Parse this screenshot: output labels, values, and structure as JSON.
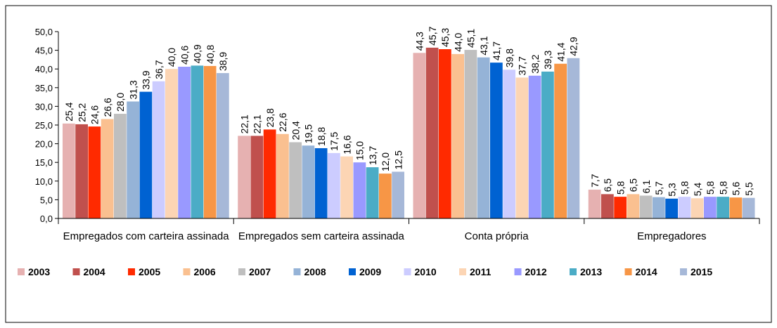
{
  "chart_data": {
    "type": "bar",
    "categories": [
      "Empregados com carteira assinada",
      "Empregados sem carteira assinada",
      "Conta própria",
      "Empregadores"
    ],
    "ylim": [
      0,
      50
    ],
    "yticks": [
      {
        "value": 0,
        "label": "0,0"
      },
      {
        "value": 5,
        "label": "5,0"
      },
      {
        "value": 10,
        "label": "10,0"
      },
      {
        "value": 15,
        "label": "15,0"
      },
      {
        "value": 20,
        "label": "20,0"
      },
      {
        "value": 25,
        "label": "25,0"
      },
      {
        "value": 30,
        "label": "30,0"
      },
      {
        "value": 35,
        "label": "35,0"
      },
      {
        "value": 40,
        "label": "40,0"
      },
      {
        "value": 45,
        "label": "45,0"
      },
      {
        "value": 50,
        "label": "50,0"
      }
    ],
    "series": [
      {
        "name": "2003",
        "color": "#e6b1b1",
        "values": [
          25.4,
          22.1,
          44.3,
          7.7
        ],
        "value_labels": [
          "25,4",
          "22,1",
          "44,3",
          "7,7"
        ]
      },
      {
        "name": "2004",
        "color": "#c0504d",
        "values": [
          25.2,
          22.1,
          45.7,
          6.5
        ],
        "value_labels": [
          "25,2",
          "22,1",
          "45,7",
          "6,5"
        ]
      },
      {
        "name": "2005",
        "color": "#ff2a00",
        "values": [
          24.6,
          23.8,
          45.3,
          5.8
        ],
        "value_labels": [
          "24,6",
          "23,8",
          "45,3",
          "5,8"
        ]
      },
      {
        "name": "2006",
        "color": "#fac090",
        "values": [
          26.6,
          22.6,
          44.0,
          6.5
        ],
        "value_labels": [
          "26,6",
          "22,6",
          "44,0",
          "6,5"
        ]
      },
      {
        "name": "2007",
        "color": "#bfbfbf",
        "values": [
          28.0,
          20.4,
          45.1,
          6.1
        ],
        "value_labels": [
          "28,0",
          "20,4",
          "45,1",
          "6,1"
        ]
      },
      {
        "name": "2008",
        "color": "#95b3d7",
        "values": [
          31.3,
          19.5,
          43.1,
          5.7
        ],
        "value_labels": [
          "31,3",
          "19,5",
          "43,1",
          "5,7"
        ]
      },
      {
        "name": "2009",
        "color": "#0062d2",
        "values": [
          33.9,
          18.8,
          41.7,
          5.3
        ],
        "value_labels": [
          "33,9",
          "18,8",
          "41,7",
          "5,3"
        ]
      },
      {
        "name": "2010",
        "color": "#ccccff",
        "values": [
          36.7,
          17.5,
          39.8,
          5.8
        ],
        "value_labels": [
          "36,7",
          "17,5",
          "39,8",
          "5,8"
        ]
      },
      {
        "name": "2011",
        "color": "#fcd5b4",
        "values": [
          40.0,
          16.6,
          37.7,
          5.4
        ],
        "value_labels": [
          "40,0",
          "16,6",
          "37,7",
          "5,4"
        ]
      },
      {
        "name": "2012",
        "color": "#9999ff",
        "values": [
          40.6,
          15.0,
          38.2,
          5.8
        ],
        "value_labels": [
          "40,6",
          "15,0",
          "38,2",
          "5,8"
        ]
      },
      {
        "name": "2013",
        "color": "#4bacc6",
        "values": [
          40.9,
          13.7,
          39.3,
          5.8
        ],
        "value_labels": [
          "40,9",
          "13,7",
          "39,3",
          "5,8"
        ]
      },
      {
        "name": "2014",
        "color": "#f79646",
        "values": [
          40.8,
          12.0,
          41.4,
          5.6
        ],
        "value_labels": [
          "40,8",
          "12,0",
          "41,4",
          "5,6"
        ]
      },
      {
        "name": "2015",
        "color": "#a6b8d8",
        "values": [
          38.9,
          12.5,
          42.9,
          5.5
        ],
        "value_labels": [
          "38,9",
          "12,5",
          "42,9",
          "5,5"
        ]
      }
    ]
  }
}
